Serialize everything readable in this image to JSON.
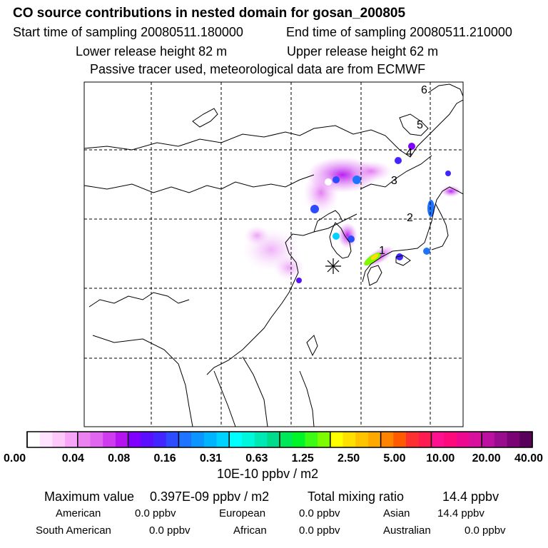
{
  "header": {
    "title": "CO  source contributions in nested domain for gosan_200805",
    "start_time": "Start time of sampling 20080511.180000",
    "end_time": "End time of sampling 20080511.210000",
    "lower_height": "Lower release height   82 m",
    "upper_height": "Upper release height   62 m",
    "tracer_note": "Passive tracer used, meteorological data are from ECMWF"
  },
  "map": {
    "track_labels": [
      "1",
      "2",
      "3",
      "4",
      "5",
      "6"
    ],
    "receptor_marker": "gosan-receptor"
  },
  "colorbar": {
    "colors": [
      "#ffffff",
      "#ffe3ff",
      "#ffc8fb",
      "#f7a6f7",
      "#ec82f0",
      "#e066f0",
      "#cf3cf0",
      "#b514f0",
      "#7f00ff",
      "#5a10ff",
      "#4226ff",
      "#2e4cff",
      "#1e74ff",
      "#0c94ff",
      "#00b4ff",
      "#00d2ff",
      "#00ffff",
      "#00f7dc",
      "#00e8b4",
      "#00dc8c",
      "#00e85a",
      "#00f528",
      "#3cfb14",
      "#7dfb00",
      "#ffff00",
      "#ffe000",
      "#ffc400",
      "#ffa800",
      "#ff8200",
      "#ff5a00",
      "#ff3030",
      "#ff1c50",
      "#ff1090",
      "#ff0a7c",
      "#ee0a90",
      "#d8109e",
      "#bb10a0",
      "#9a0c8e",
      "#7a0474",
      "#58005a"
    ],
    "labels": [
      "0.00",
      "0.04",
      "0.08",
      "0.16",
      "0.31",
      "0.63",
      "1.25",
      "2.50",
      "5.00",
      "10.00",
      "20.00",
      "40.00"
    ],
    "units": "10E-10 ppbv / m2"
  },
  "summary": {
    "max_label": "Maximum value",
    "max_value": "0.397E-09 ppbv / m2",
    "total_label": "Total mixing ratio",
    "total_value": "14.4 ppbv",
    "regions": [
      {
        "name": "American",
        "value": "0.0 ppbv"
      },
      {
        "name": "European",
        "value": "0.0 ppbv"
      },
      {
        "name": "Asian",
        "value": "14.4 ppbv"
      },
      {
        "name": "South American",
        "value": "0.0 ppbv"
      },
      {
        "name": "African",
        "value": "0.0 ppbv"
      },
      {
        "name": "Australian",
        "value": "0.0 ppbv"
      }
    ]
  }
}
